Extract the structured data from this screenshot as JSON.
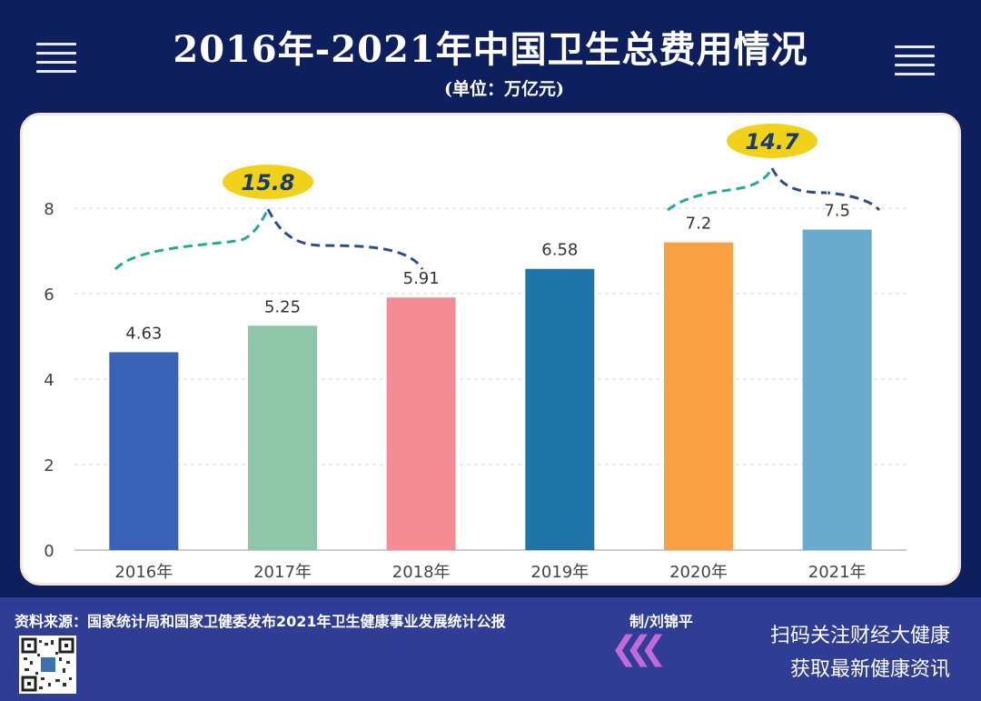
{
  "header": {
    "title": "2016年-2021年中国卫生总费用情况",
    "subtitle": "(单位：万亿元)",
    "left_icon": "menu-lines-icon",
    "right_icon": "menu-lines-icon"
  },
  "chart_data": {
    "type": "bar",
    "title": "2016年-2021年中国卫生总费用情况",
    "subtitle": "(单位：万亿元)",
    "xlabel": "",
    "ylabel": "万亿元",
    "categories": [
      "2016年",
      "2017年",
      "2018年",
      "2019年",
      "2020年",
      "2021年"
    ],
    "values": [
      4.63,
      5.25,
      5.91,
      6.58,
      7.2,
      7.5
    ],
    "value_labels": [
      "4.63",
      "5.25",
      "5.91",
      "6.58",
      "7.2",
      "7.5"
    ],
    "colors": [
      "#3a63b8",
      "#8dc6a8",
      "#f38d93",
      "#1f75a8",
      "#f7a044",
      "#68abcc"
    ],
    "ylim": [
      0,
      8
    ],
    "yticks": [
      0,
      2,
      4,
      6,
      8
    ],
    "grid": true,
    "annotations": [
      {
        "label": "15.8",
        "from_category": "2016年",
        "to_category": "2018年",
        "type": "brace"
      },
      {
        "label": "14.7",
        "from_category": "2020年",
        "to_category": "2021年",
        "type": "brace"
      }
    ],
    "annotation_color": "#f2d11a"
  },
  "footer": {
    "source": "资料来源：国家统计局和国家卫健委发布2021年卫生健康事业发展统计公报",
    "author": "制/刘锦平",
    "cta_line1": "扫码关注财经大健康",
    "cta_line2": "获取最新健康资讯",
    "qr_icon": "qr-code-icon",
    "chevrons_icon": "chevrons-left-icon",
    "chevrons": "❮❮❮"
  }
}
